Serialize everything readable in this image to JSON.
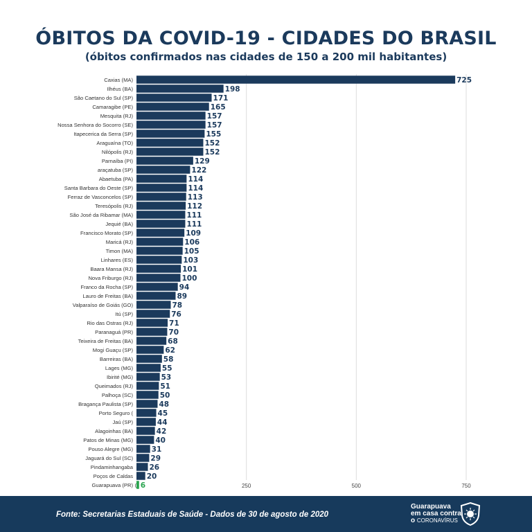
{
  "title": "ÓBITOS DA COVID-19 - CIDADES DO BRASIL",
  "subtitle": "(óbitos confirmados nas cidades de 150 a 200 mil habitantes)",
  "footer": {
    "source": "Fonte: Secretarias Estaduais de Saúde -  Dados de 30  de agosto de 2020",
    "brand_line1": "Guarapuava",
    "brand_line2": "em casa contra",
    "brand_line3_prefix": "o",
    "brand_line3": "CORONAVÍRUS"
  },
  "colors": {
    "bar": "#1b3a5c",
    "highlight": "#2aa44f",
    "title": "#1b3a5c",
    "footer": "#173a5c"
  },
  "chart_data": {
    "type": "bar",
    "orientation": "horizontal",
    "title": "ÓBITOS DA COVID-19 - CIDADES DO BRASIL",
    "xlim": [
      0,
      750
    ],
    "xticks": [
      0,
      250,
      500,
      750
    ],
    "grid": true,
    "highlight": "Guarapuava (PR)",
    "categories": [
      "Caxias (MA)",
      "Ilhéus (BA)",
      "São Caetano do Sul (SP)",
      "Camaragibe (PE)",
      "Mesquita (RJ)",
      "Nossa Senhora do Socorro (SE)",
      "Itapecerica da Serra (SP)",
      "Araguaína (TO)",
      "Nilópolis (RJ)",
      "Parnaíba (PI)",
      "araçatuba (SP)",
      "Abaetuba (PA)",
      "Santa Barbara do Oeste (SP)",
      "Ferraz de Vasconcelos (SP)",
      "Teresópolis (RJ)",
      "São José da Ribamar (MA)",
      "Jequié (BA)",
      "Francisco Morato (SP)",
      "Maricá (RJ)",
      "Timon (MA)",
      "Linhares (ES)",
      "Baara Mansa (RJ)",
      "Nova Friburgo (RJ)",
      "Franco da Rocha (SP)",
      "Lauro de Freitas (BA)",
      "Valparaíso de Goiás (GO)",
      "Itú (SP)",
      "Rio das Ostras (RJ)",
      "Paranaguá (PR)",
      "Teixeira de Freitas (BA)",
      "Mogi Guaçu (SP)",
      "Barreiras (BA)",
      "Lages (MG)",
      "Ibirité (MG)",
      "Queimados (RJ)",
      "Palhoça (SC)",
      "Bragança Paulista (SP)",
      "Porto Seguro (",
      "Jaú (SP)",
      "Alagoinhas (BA)",
      "Patos de Minas (MG)",
      "Pouso Alegre (MG)",
      "Jaguará do Sul (SC)",
      "Pindaminhangaba",
      "Poços de Caldas",
      "Guarapuava (PR)"
    ],
    "values": [
      725,
      198,
      171,
      165,
      157,
      157,
      155,
      152,
      152,
      129,
      122,
      114,
      114,
      113,
      112,
      111,
      111,
      109,
      106,
      105,
      103,
      101,
      100,
      94,
      89,
      78,
      76,
      71,
      70,
      68,
      62,
      58,
      55,
      53,
      51,
      50,
      48,
      45,
      44,
      42,
      40,
      31,
      29,
      26,
      20,
      6
    ]
  }
}
